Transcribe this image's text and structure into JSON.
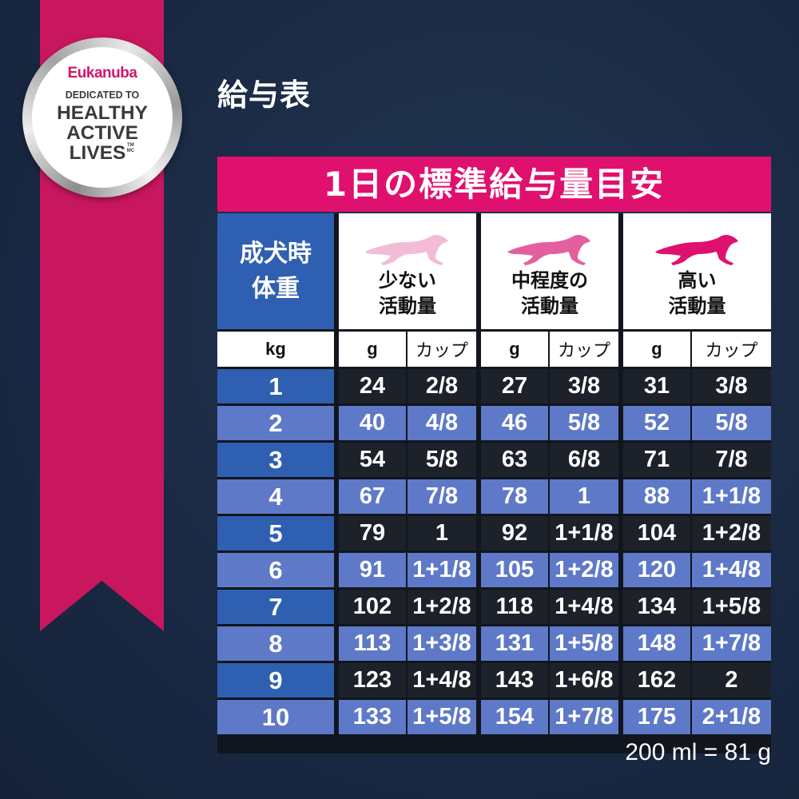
{
  "badge": {
    "brand": "Eukanuba",
    "dedicated": "DEDICATED TO",
    "slogan_lines": [
      "HEALTHY",
      "ACTIVE",
      "LIVES"
    ],
    "trademark": "TM MC"
  },
  "heading": "給与表",
  "banner": "1日の標準給与量目安",
  "colors": {
    "ribbon": "#c8175f",
    "banner": "#e0106f",
    "low_dog": "#f3bcd6",
    "mid_dog": "#e45fa0",
    "high_dog": "#e0106f"
  },
  "table": {
    "weight_header": [
      "成犬時",
      "体重"
    ],
    "activity_headers": [
      {
        "lines": [
          "少ない",
          "活動量"
        ],
        "icon": "running-dog-icon"
      },
      {
        "lines": [
          "中程度の",
          "活動量"
        ],
        "icon": "running-dog-icon"
      },
      {
        "lines": [
          "高い",
          "活動量"
        ],
        "icon": "running-dog-icon"
      }
    ],
    "unit_kg": "kg",
    "unit_g": "g",
    "unit_cup": "カップ",
    "rows": [
      {
        "kg": "1",
        "values": [
          "24",
          "2/8",
          "27",
          "3/8",
          "31",
          "3/8"
        ]
      },
      {
        "kg": "2",
        "values": [
          "40",
          "4/8",
          "46",
          "5/8",
          "52",
          "5/8"
        ]
      },
      {
        "kg": "3",
        "values": [
          "54",
          "5/8",
          "63",
          "6/8",
          "71",
          "7/8"
        ]
      },
      {
        "kg": "4",
        "values": [
          "67",
          "7/8",
          "78",
          "1",
          "88",
          "1+1/8"
        ]
      },
      {
        "kg": "5",
        "values": [
          "79",
          "1",
          "92",
          "1+1/8",
          "104",
          "1+2/8"
        ]
      },
      {
        "kg": "6",
        "values": [
          "91",
          "1+1/8",
          "105",
          "1+2/8",
          "120",
          "1+4/8"
        ]
      },
      {
        "kg": "7",
        "values": [
          "102",
          "1+2/8",
          "118",
          "1+4/8",
          "134",
          "1+5/8"
        ]
      },
      {
        "kg": "8",
        "values": [
          "113",
          "1+3/8",
          "131",
          "1+5/8",
          "148",
          "1+7/8"
        ]
      },
      {
        "kg": "9",
        "values": [
          "123",
          "1+4/8",
          "143",
          "1+6/8",
          "162",
          "2"
        ]
      },
      {
        "kg": "10",
        "values": [
          "133",
          "1+5/8",
          "154",
          "1+7/8",
          "175",
          "2+1/8"
        ]
      }
    ]
  },
  "footer": "200 ml = 81 g"
}
